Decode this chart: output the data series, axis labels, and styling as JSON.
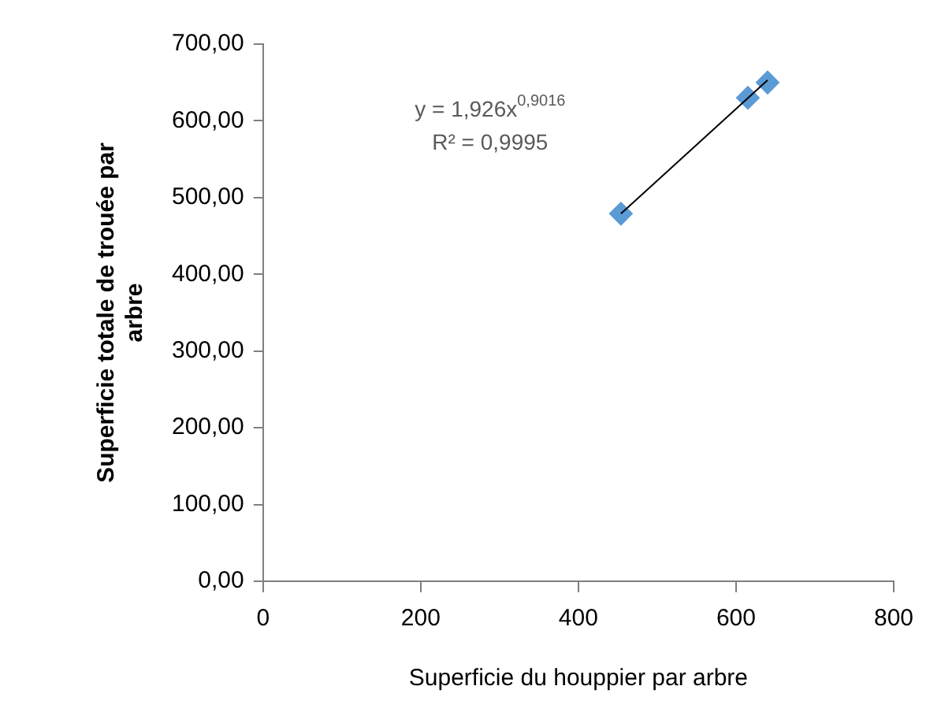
{
  "chart_data": {
    "type": "scatter",
    "xlabel": "Superficie du houppier par arbre",
    "ylabel": "Superficie totale de trouée par arbre",
    "series": [
      {
        "color": "#5b9bd5",
        "marker": "diamond",
        "x": [
          454,
          615,
          640
        ],
        "values": [
          479,
          630,
          650
        ]
      },
      {
        "type": "line",
        "color": "#000000",
        "marker": "none",
        "x": [
          454,
          640
        ],
        "values": [
          479,
          653
        ]
      }
    ],
    "xlim": [
      0,
      800
    ],
    "xticks": [
      0,
      200,
      400,
      600,
      800
    ],
    "ylim": [
      0,
      700
    ],
    "yticks": [
      {
        "value": 0,
        "label": "0,00"
      },
      {
        "value": 100,
        "label": "100,00"
      },
      {
        "value": 200,
        "label": "200,00"
      },
      {
        "value": 300,
        "label": "300,00"
      },
      {
        "value": 400,
        "label": "400,00"
      },
      {
        "value": 500,
        "label": "500,00"
      },
      {
        "value": 600,
        "label": "600,00"
      },
      {
        "value": 700,
        "label": "700,00"
      }
    ],
    "annotations": [
      "y = 1,926x$^{0,9016}$",
      "R² = 0,9995"
    ],
    "grid": false,
    "legend": false
  }
}
